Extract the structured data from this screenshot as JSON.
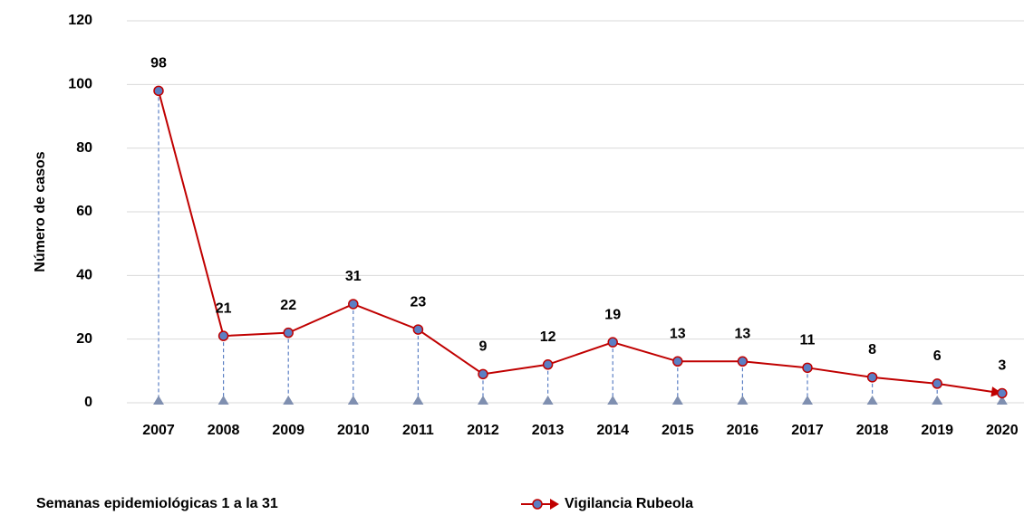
{
  "chart_data": {
    "type": "line",
    "ylabel": "Número de casos",
    "footnote": "Semanas epidemiológicas 1 a la 31",
    "categories": [
      "2007",
      "2008",
      "2009",
      "2010",
      "2011",
      "2012",
      "2013",
      "2014",
      "2015",
      "2016",
      "2017",
      "2018",
      "2019",
      "2020"
    ],
    "series": [
      {
        "name": "Vigilancia Rubeola",
        "color": "#c00000",
        "marker_color": "#5b7fc4",
        "values": [
          98,
          21,
          22,
          31,
          23,
          9,
          12,
          19,
          13,
          13,
          11,
          8,
          6,
          3
        ]
      }
    ],
    "ylim": [
      0,
      120
    ],
    "yticks": [
      0,
      20,
      40,
      60,
      80,
      100,
      120
    ],
    "grid": true
  }
}
